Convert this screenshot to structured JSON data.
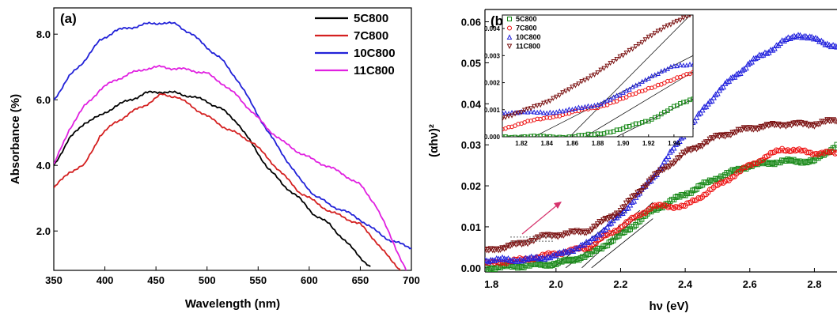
{
  "chart_data": [
    {
      "id": "a",
      "type": "line",
      "panel_label": "(a)",
      "xlabel": "Wavelength (nm)",
      "ylabel": "Absorbance (%)",
      "xlim": [
        350,
        700
      ],
      "ylim": [
        0.8,
        8.8
      ],
      "xticks": [
        "350",
        "400",
        "450",
        "500",
        "550",
        "600",
        "650",
        "700"
      ],
      "yticks": [
        "2.0",
        "4.0",
        "6.0",
        "8.0"
      ],
      "legend_position": "top-right",
      "series": [
        {
          "name": "5C800",
          "color": "#000000",
          "x": [
            350,
            365,
            380,
            395,
            410,
            425,
            440,
            455,
            470,
            485,
            500,
            515,
            530,
            545,
            560,
            575,
            590,
            605,
            620,
            635,
            650,
            660
          ],
          "y": [
            4.0,
            4.8,
            5.3,
            5.5,
            5.8,
            6.0,
            6.2,
            6.25,
            6.2,
            6.1,
            5.95,
            5.7,
            5.3,
            4.6,
            3.9,
            3.4,
            3.0,
            2.5,
            2.2,
            1.7,
            1.2,
            0.9
          ]
        },
        {
          "name": "7C800",
          "color": "#d42020",
          "x": [
            350,
            365,
            380,
            395,
            410,
            425,
            440,
            455,
            470,
            485,
            500,
            515,
            530,
            545,
            560,
            575,
            590,
            605,
            620,
            635,
            650,
            665,
            680,
            690
          ],
          "y": [
            3.3,
            3.8,
            4.0,
            4.9,
            5.3,
            5.6,
            5.85,
            6.15,
            6.1,
            5.8,
            5.5,
            5.2,
            4.95,
            4.7,
            4.2,
            3.7,
            3.2,
            2.9,
            2.6,
            2.4,
            2.2,
            1.7,
            1.1,
            0.8
          ]
        },
        {
          "name": "10C800",
          "color": "#2222d8",
          "x": [
            350,
            365,
            380,
            395,
            410,
            425,
            440,
            455,
            470,
            485,
            500,
            515,
            530,
            545,
            560,
            575,
            590,
            605,
            620,
            635,
            650,
            665,
            680,
            700
          ],
          "y": [
            6.0,
            6.7,
            7.2,
            7.8,
            8.1,
            8.2,
            8.3,
            8.35,
            8.3,
            8.0,
            7.6,
            7.2,
            6.6,
            5.8,
            5.0,
            4.3,
            3.6,
            3.1,
            2.8,
            2.6,
            2.35,
            2.0,
            1.7,
            1.5
          ]
        },
        {
          "name": "11C800",
          "color": "#e020e0",
          "x": [
            350,
            365,
            380,
            395,
            410,
            425,
            440,
            455,
            470,
            485,
            500,
            515,
            530,
            545,
            560,
            575,
            590,
            605,
            620,
            635,
            650,
            665,
            680,
            695
          ],
          "y": [
            4.0,
            5.1,
            5.8,
            6.3,
            6.6,
            6.8,
            6.95,
            7.0,
            6.95,
            6.9,
            6.8,
            6.5,
            6.1,
            5.6,
            5.1,
            4.7,
            4.4,
            4.15,
            3.95,
            3.7,
            3.4,
            2.8,
            1.8,
            0.8
          ]
        }
      ]
    },
    {
      "id": "b",
      "type": "scatter",
      "panel_label": "(b)",
      "xlabel": "hν (eV)",
      "ylabel": "(αhν)²",
      "xlim": [
        1.78,
        2.87
      ],
      "ylim": [
        -0.001,
        0.063
      ],
      "xticks": [
        "1.8",
        "2.0",
        "2.2",
        "2.4",
        "2.6",
        "2.8"
      ],
      "yticks": [
        "0.00",
        "0.01",
        "0.02",
        "0.03",
        "0.04",
        "0.05",
        "0.06"
      ],
      "legend_position": "inset top-left",
      "series": [
        {
          "name": "5C800",
          "color": "#1a8a1a",
          "marker": "square",
          "x": [
            1.78,
            1.9,
            2.0,
            2.1,
            2.2,
            2.3,
            2.4,
            2.5,
            2.6,
            2.7,
            2.8,
            2.87
          ],
          "y": [
            0.0,
            0.0005,
            0.001,
            0.003,
            0.008,
            0.014,
            0.018,
            0.022,
            0.025,
            0.026,
            0.026,
            0.03
          ]
        },
        {
          "name": "7C800",
          "color": "#ee1111",
          "marker": "circle",
          "x": [
            1.78,
            1.9,
            2.0,
            2.1,
            2.2,
            2.3,
            2.4,
            2.5,
            2.6,
            2.7,
            2.8,
            2.87
          ],
          "y": [
            0.001,
            0.002,
            0.0035,
            0.005,
            0.01,
            0.015,
            0.015,
            0.02,
            0.025,
            0.029,
            0.028,
            0.028
          ]
        },
        {
          "name": "10C800",
          "color": "#2222dd",
          "marker": "triangle",
          "x": [
            1.78,
            1.9,
            2.0,
            2.1,
            2.2,
            2.3,
            2.4,
            2.5,
            2.6,
            2.7,
            2.75,
            2.87
          ],
          "y": [
            0.002,
            0.002,
            0.003,
            0.006,
            0.013,
            0.022,
            0.033,
            0.043,
            0.05,
            0.055,
            0.057,
            0.054
          ]
        },
        {
          "name": "11C800",
          "color": "#7a1010",
          "marker": "triangle-down",
          "x": [
            1.78,
            1.9,
            1.95,
            2.0,
            2.1,
            2.2,
            2.3,
            2.4,
            2.5,
            2.6,
            2.7,
            2.8,
            2.87
          ],
          "y": [
            0.004,
            0.006,
            0.0075,
            0.008,
            0.009,
            0.014,
            0.022,
            0.028,
            0.032,
            0.034,
            0.035,
            0.035,
            0.036
          ]
        }
      ],
      "inset": {
        "xlim": [
          1.805,
          1.955
        ],
        "ylim": [
          0.0,
          0.0045
        ],
        "xticks": [
          "1.82",
          "1.84",
          "1.86",
          "1.88",
          "1.90",
          "1.92",
          "1.94"
        ],
        "yticks": [
          "0.000",
          "0.001",
          "0.002",
          "0.003",
          "0.004"
        ],
        "series": [
          {
            "name": "5C800",
            "x": [
              1.805,
              1.83,
              1.86,
              1.88,
              1.9,
              1.92,
              1.94,
              1.955
            ],
            "y": [
              0.0,
              0.0,
              0.0,
              0.0001,
              0.0003,
              0.0006,
              0.0011,
              0.0014
            ]
          },
          {
            "name": "7C800",
            "x": [
              1.805,
              1.82,
              1.84,
              1.86,
              1.88,
              1.9,
              1.92,
              1.94,
              1.955
            ],
            "y": [
              0.0003,
              0.0005,
              0.0007,
              0.0009,
              0.0011,
              0.0014,
              0.0018,
              0.0021,
              0.0024
            ]
          },
          {
            "name": "10C800",
            "x": [
              1.805,
              1.82,
              1.84,
              1.86,
              1.88,
              1.9,
              1.92,
              1.94,
              1.955
            ],
            "y": [
              0.0009,
              0.0009,
              0.0009,
              0.001,
              0.0012,
              0.0016,
              0.0022,
              0.0026,
              0.0027
            ]
          },
          {
            "name": "11C800",
            "x": [
              1.805,
              1.82,
              1.84,
              1.86,
              1.88,
              1.9,
              1.92,
              1.94,
              1.955
            ],
            "y": [
              0.0007,
              0.0009,
              0.0013,
              0.0018,
              0.0024,
              0.003,
              0.0037,
              0.0042,
              0.0046
            ]
          }
        ]
      }
    }
  ]
}
